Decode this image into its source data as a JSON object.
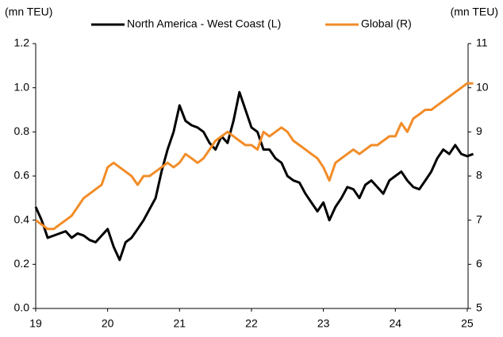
{
  "chart_data": {
    "type": "line",
    "y_label": "(mn TEU)",
    "y2_label": "(mn TEU)",
    "x": [
      19,
      19.083,
      19.167,
      19.25,
      19.333,
      19.417,
      19.5,
      19.583,
      19.667,
      19.75,
      19.833,
      19.917,
      20,
      20.083,
      20.167,
      20.25,
      20.333,
      20.417,
      20.5,
      20.583,
      20.667,
      20.75,
      20.833,
      20.917,
      21,
      21.083,
      21.167,
      21.25,
      21.333,
      21.417,
      21.5,
      21.583,
      21.667,
      21.75,
      21.833,
      21.917,
      22,
      22.083,
      22.167,
      22.25,
      22.333,
      22.417,
      22.5,
      22.583,
      22.667,
      22.75,
      22.833,
      22.917,
      23,
      23.083,
      23.167,
      23.25,
      23.333,
      23.417,
      23.5,
      23.583,
      23.667,
      23.75,
      23.833,
      23.917,
      24,
      24.083,
      24.167,
      24.25,
      24.333,
      24.417,
      24.5,
      24.583,
      24.667,
      24.75,
      24.833,
      24.917,
      25,
      25.083
    ],
    "series": [
      {
        "name": "North America - West Coast (L)",
        "color": "#000000",
        "axis": "y",
        "values": [
          0.46,
          0.4,
          0.32,
          0.33,
          0.34,
          0.35,
          0.32,
          0.34,
          0.33,
          0.31,
          0.3,
          0.33,
          0.36,
          0.28,
          0.22,
          0.3,
          0.32,
          0.36,
          0.4,
          0.45,
          0.5,
          0.62,
          0.72,
          0.8,
          0.92,
          0.85,
          0.83,
          0.82,
          0.8,
          0.75,
          0.72,
          0.78,
          0.75,
          0.85,
          0.98,
          0.9,
          0.82,
          0.8,
          0.72,
          0.72,
          0.68,
          0.66,
          0.6,
          0.58,
          0.57,
          0.52,
          0.48,
          0.44,
          0.48,
          0.4,
          0.46,
          0.5,
          0.55,
          0.54,
          0.5,
          0.56,
          0.58,
          0.55,
          0.52,
          0.58,
          0.6,
          0.62,
          0.58,
          0.55,
          0.54,
          0.58,
          0.62,
          0.68,
          0.72,
          0.7,
          0.74,
          0.7,
          0.69,
          0.7
        ]
      },
      {
        "name": "Global (R)",
        "color": "#f28c28",
        "axis": "y2",
        "values": [
          7.0,
          6.9,
          6.8,
          6.8,
          6.9,
          7.0,
          7.1,
          7.3,
          7.5,
          7.6,
          7.7,
          7.8,
          8.2,
          8.3,
          8.2,
          8.1,
          8.0,
          7.8,
          8.0,
          8.0,
          8.1,
          8.2,
          8.3,
          8.2,
          8.3,
          8.5,
          8.4,
          8.3,
          8.4,
          8.6,
          8.8,
          8.9,
          9.0,
          8.9,
          8.8,
          8.7,
          8.7,
          8.6,
          9.0,
          8.9,
          9.0,
          9.1,
          9.0,
          8.8,
          8.7,
          8.6,
          8.5,
          8.4,
          8.2,
          7.9,
          8.3,
          8.4,
          8.5,
          8.6,
          8.5,
          8.6,
          8.7,
          8.7,
          8.8,
          8.9,
          8.9,
          9.2,
          9.0,
          9.3,
          9.4,
          9.5,
          9.5,
          9.6,
          9.7,
          9.8,
          9.9,
          10.0,
          10.1,
          10.1
        ]
      }
    ],
    "xlim": [
      19,
      25.1
    ],
    "xticks": [
      19,
      20,
      21,
      22,
      23,
      24,
      25
    ],
    "ylim": [
      0,
      1.2
    ],
    "yticks": [
      {
        "value": 0,
        "label": "0.0"
      },
      0.2,
      0.4,
      0.6,
      0.8,
      {
        "value": 1,
        "label": "1.0"
      },
      1.2
    ],
    "y2lim": [
      5,
      11
    ],
    "y2ticks": [
      5,
      6,
      7,
      8,
      9,
      10,
      11
    ],
    "legend": "top"
  }
}
